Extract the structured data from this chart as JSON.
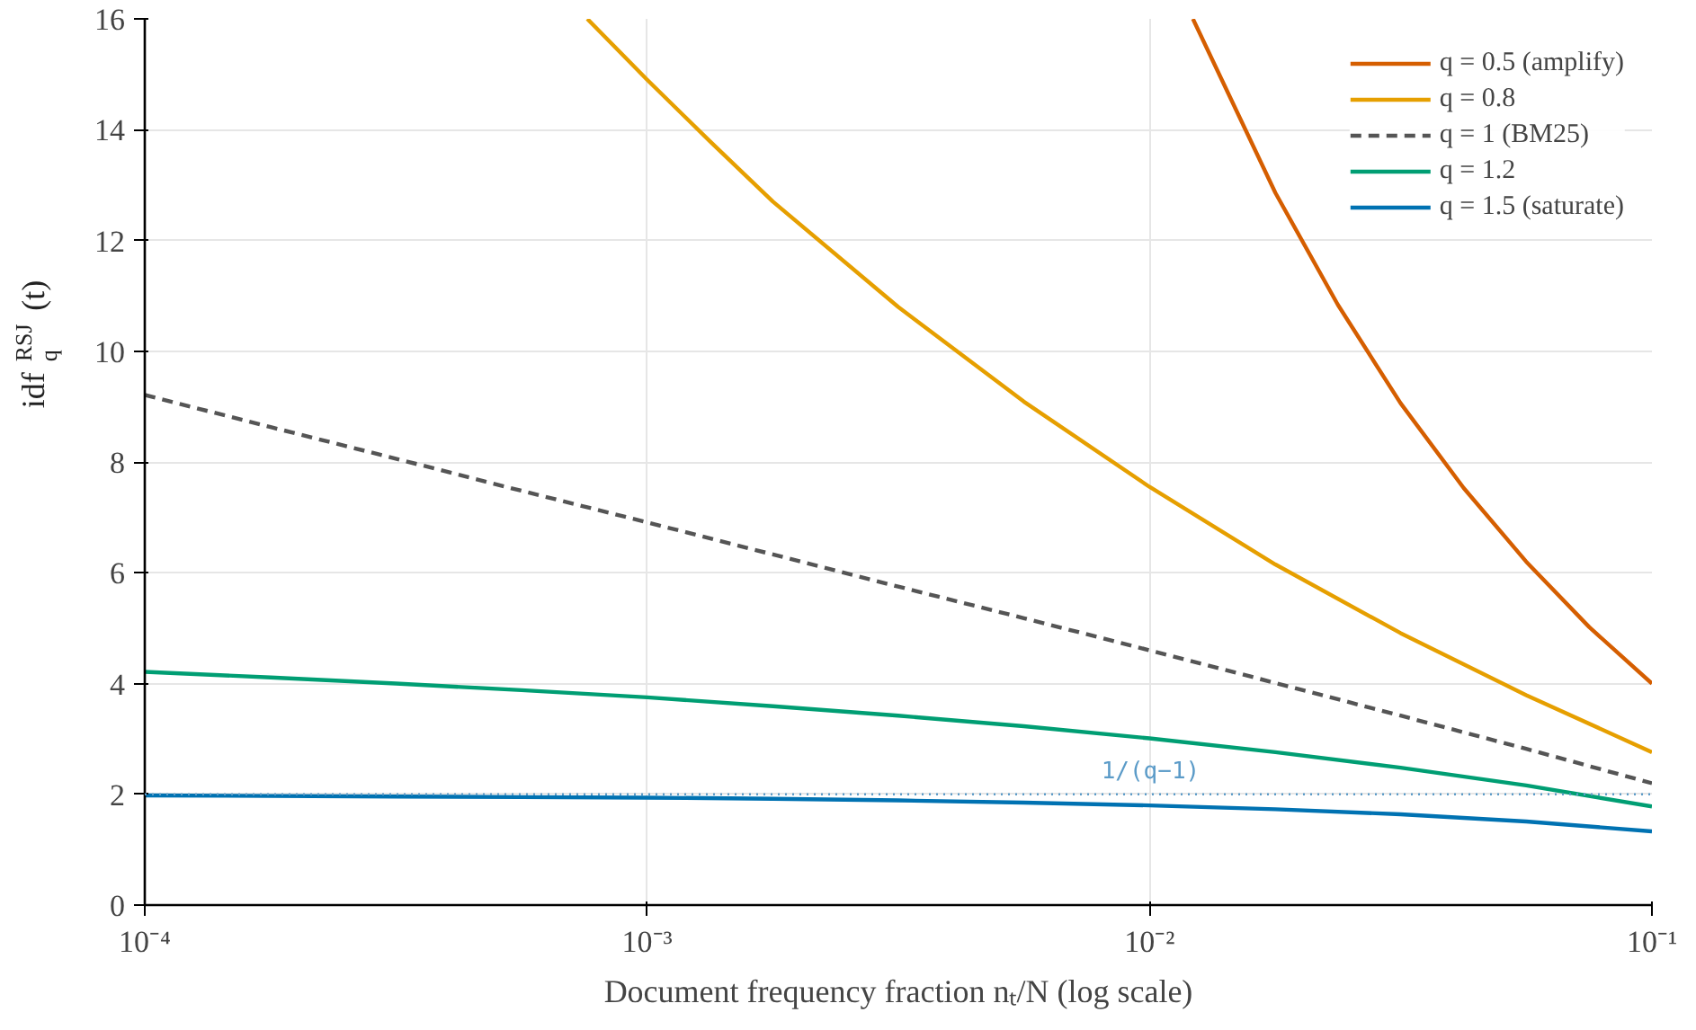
{
  "chart_data": {
    "type": "line",
    "xlabel": "Document frequency fraction nₜ/N (log scale)",
    "ylabel": "idf$_{q}$$^{RSJ}$(t)",
    "log": "x",
    "xlim": [
      0.0001,
      0.1
    ],
    "ylim": [
      0,
      16
    ],
    "xticks": [
      {
        "value": 0.0001,
        "label": "10⁻⁴"
      },
      {
        "value": 0.001,
        "label": "10⁻³"
      },
      {
        "value": 0.01,
        "label": "10⁻²"
      },
      {
        "value": 0.1,
        "label": "10⁻¹"
      }
    ],
    "yticks": [
      0,
      2,
      4,
      6,
      8,
      10,
      12,
      14,
      16
    ],
    "grid": true,
    "legend": "top right",
    "marker": "none",
    "series": [
      {
        "name": "q = 0.5 (amplify)",
        "color": "#d55e00",
        "x": [
          0.0122,
          0.0178,
          0.0237,
          0.0316,
          0.0422,
          0.0562,
          0.075,
          0.1
        ],
        "values": [
          16,
          12.86,
          10.84,
          9.06,
          7.53,
          6.2,
          5.02,
          4.0
        ]
      },
      {
        "name": "q = 0.8",
        "color": "#e69f00",
        "x": [
          0.00076,
          0.001,
          0.00133,
          0.00178,
          0.00316,
          0.00562,
          0.01,
          0.0178,
          0.0316,
          0.0562,
          0.1
        ],
        "values": [
          16,
          14.9,
          13.8,
          12.7,
          10.8,
          9.09,
          7.55,
          6.15,
          4.91,
          3.79,
          2.76
        ]
      },
      {
        "name": "q = 1 (BM25)",
        "color": "#555555",
        "line_style": "dashed",
        "x": [
          0.0001,
          0.000178,
          0.000316,
          0.000562,
          0.001,
          0.00178,
          0.00316,
          0.00562,
          0.01,
          0.0178,
          0.0316,
          0.0562,
          0.1
        ],
        "values": [
          9.21,
          8.63,
          8.06,
          7.48,
          6.91,
          6.33,
          5.75,
          5.18,
          4.6,
          4.01,
          3.42,
          2.82,
          2.2
        ]
      },
      {
        "name": "q = 1.2",
        "color": "#009e73",
        "x": [
          0.0001,
          0.000178,
          0.000316,
          0.000562,
          0.001,
          0.00178,
          0.00316,
          0.00562,
          0.01,
          0.0178,
          0.0316,
          0.0562,
          0.1
        ],
        "values": [
          4.21,
          4.11,
          4.0,
          3.88,
          3.75,
          3.59,
          3.42,
          3.23,
          3.01,
          2.76,
          2.48,
          2.16,
          1.78
        ]
      },
      {
        "name": "q = 1.5 (saturate)",
        "color": "#0072b2",
        "x": [
          0.0001,
          0.000178,
          0.000316,
          0.000562,
          0.001,
          0.00178,
          0.00316,
          0.00562,
          0.01,
          0.0178,
          0.0316,
          0.0562,
          0.1
        ],
        "values": [
          1.98,
          1.97,
          1.96,
          1.95,
          1.94,
          1.92,
          1.89,
          1.85,
          1.8,
          1.73,
          1.64,
          1.51,
          1.33
        ]
      }
    ],
    "ref_lines": [
      {
        "axis": "y",
        "value": 2,
        "label": "1/(q−1)",
        "color": "#5b9bc8",
        "line_style": "dotted"
      }
    ]
  }
}
